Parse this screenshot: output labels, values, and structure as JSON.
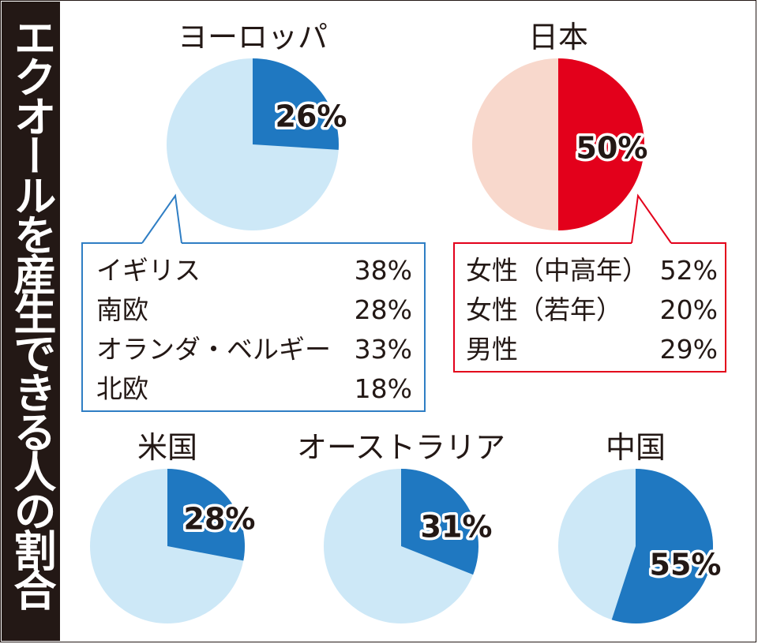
{
  "side_title": "エクオールを産生できる人の割合",
  "colors": {
    "blue_dark": "#1f78c1",
    "blue_light": "#cde8f7",
    "red_dark": "#e3001b",
    "red_light": "#f8d8cc",
    "text": "#231815",
    "callout_blue": "#2f7ec4",
    "callout_red": "#e3001b"
  },
  "chart_data": [
    {
      "type": "pie",
      "title": "ヨーロッパ",
      "value": 26,
      "label": "26%",
      "color_scheme": "blue",
      "breakdown": [
        {
          "name": "イギリス",
          "value": "38%"
        },
        {
          "name": "南欧",
          "value": "28%"
        },
        {
          "name": "オランダ・ベルギー",
          "value": "33%"
        },
        {
          "name": "北欧",
          "value": "18%"
        }
      ]
    },
    {
      "type": "pie",
      "title": "日本",
      "value": 50,
      "label": "50%",
      "color_scheme": "red",
      "breakdown": [
        {
          "name": "女性（中高年）",
          "value": "52%"
        },
        {
          "name": "女性（若年）",
          "value": "20%"
        },
        {
          "name": "男性",
          "value": "29%"
        }
      ]
    },
    {
      "type": "pie",
      "title": "米国",
      "value": 28,
      "label": "28%",
      "color_scheme": "blue"
    },
    {
      "type": "pie",
      "title": "オーストラリア",
      "value": 31,
      "label": "31%",
      "color_scheme": "blue"
    },
    {
      "type": "pie",
      "title": "中国",
      "value": 55,
      "label": "55%",
      "color_scheme": "blue"
    }
  ]
}
